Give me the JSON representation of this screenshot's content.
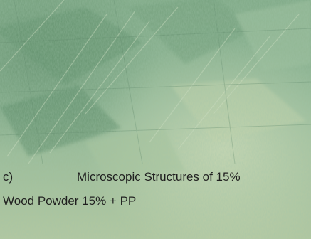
{
  "caption": {
    "label": "c)",
    "line1": "Microscopic Structures of 15%",
    "line2": "Wood Powder 15% + PP"
  },
  "colors": {
    "base_green": "#8fb593",
    "dark_green": "#5f8f6a",
    "light_tone": "#c9d8b4",
    "text": "#1f1f1f"
  }
}
